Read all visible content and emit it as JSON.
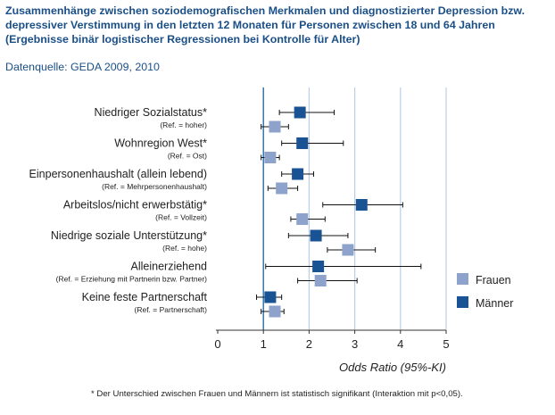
{
  "title": {
    "lines": [
      "Zusammenhänge zwischen soziodemografischen Merkmalen und diagnostizierter Depression bzw.",
      "depressiver Verstimmung in den letzten 12 Monaten für Personen zwischen 18 und 64 Jahren",
      "(Ergebnisse binär logistischer Regressionen bei Kontrolle für Alter)"
    ],
    "source": "Datenquelle: GEDA 2009, 2010"
  },
  "chart_data": {
    "type": "scatter",
    "subtype": "forest-plot",
    "xlabel": "Odds Ratio (95%-KI)",
    "xlim": [
      0,
      5
    ],
    "xticks": [
      0,
      1,
      2,
      3,
      4,
      5
    ],
    "reference_line": 1,
    "grid": true,
    "legend": {
      "position": "right",
      "entries": [
        {
          "name": "Frauen",
          "color": "#8da3cc"
        },
        {
          "name": "Männer",
          "color": "#1a5394"
        }
      ]
    },
    "categories": [
      {
        "label": "Niedriger Sozialstatus*",
        "ref": "(Ref. = hoher)"
      },
      {
        "label": "Wohnregion West*",
        "ref": "(Ref. = Ost)"
      },
      {
        "label": "Einpersonenhaushalt (allein lebend)",
        "ref": "(Ref. = Mehrpersonenhaushalt)"
      },
      {
        "label": "Arbeitslos/nicht erwerbstätig*",
        "ref": "(Ref. = Vollzeit)"
      },
      {
        "label": "Niedrige soziale Unterstützung*",
        "ref": "(Ref. = hohe)"
      },
      {
        "label": "Alleinerziehend",
        "ref": "(Ref. = Erziehung mit Partnerin bzw. Partner)"
      },
      {
        "label": "Keine feste Partnerschaft",
        "ref": "(Ref. = Partnerschaft)"
      }
    ],
    "series": [
      {
        "name": "Männer",
        "values": [
          {
            "or": 1.8,
            "lo": 1.35,
            "hi": 2.55
          },
          {
            "or": 1.85,
            "lo": 1.4,
            "hi": 2.75
          },
          {
            "or": 1.75,
            "lo": 1.4,
            "hi": 2.1
          },
          {
            "or": 3.15,
            "lo": 2.3,
            "hi": 4.05
          },
          {
            "or": 2.15,
            "lo": 1.55,
            "hi": 2.85
          },
          {
            "or": 2.2,
            "lo": 1.05,
            "hi": 4.45
          },
          {
            "or": 1.15,
            "lo": 0.85,
            "hi": 1.4
          }
        ]
      },
      {
        "name": "Frauen",
        "values": [
          {
            "or": 1.25,
            "lo": 0.95,
            "hi": 1.55
          },
          {
            "or": 1.15,
            "lo": 0.95,
            "hi": 1.35
          },
          {
            "or": 1.4,
            "lo": 1.1,
            "hi": 1.75
          },
          {
            "or": 1.85,
            "lo": 1.6,
            "hi": 2.35
          },
          {
            "or": 2.85,
            "lo": 2.4,
            "hi": 3.45
          },
          {
            "or": 2.25,
            "lo": 1.75,
            "hi": 3.05
          },
          {
            "or": 1.25,
            "lo": 0.95,
            "hi": 1.45
          }
        ]
      }
    ]
  },
  "footnote": "* Der Unterschied zwischen Frauen und Männern ist statistisch signifikant (Interaktion mit p<0,05)."
}
